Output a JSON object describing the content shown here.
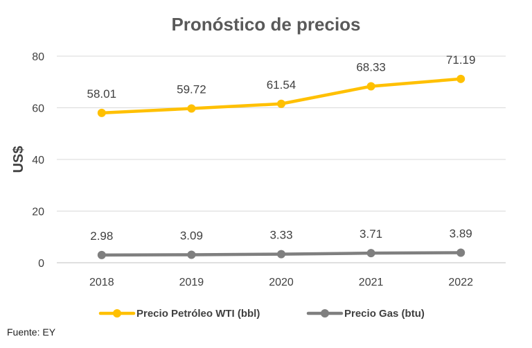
{
  "chart_data": {
    "type": "line",
    "title": "Pronóstico de precios",
    "xlabel": "",
    "ylabel": "US$",
    "ylim": [
      0,
      80
    ],
    "yticks": [
      0,
      20,
      40,
      60,
      80
    ],
    "grid": true,
    "legend_position": "bottom",
    "categories": [
      "2018",
      "2019",
      "2020",
      "2021",
      "2022"
    ],
    "series": [
      {
        "name": "Precio Petróleo WTI (bbl)",
        "color": "#FFC000",
        "values": [
          58.01,
          59.72,
          61.54,
          68.33,
          71.19
        ],
        "labels": [
          "58.01",
          "59.72",
          "61.54",
          "68.33",
          "71.19"
        ]
      },
      {
        "name": "Precio Gas (btu)",
        "color": "#7F7F7F",
        "values": [
          2.98,
          3.09,
          3.33,
          3.71,
          3.89
        ],
        "labels": [
          "2.98",
          "3.09",
          "3.33",
          "3.71",
          "3.89"
        ]
      }
    ]
  },
  "source": "Fuente: EY"
}
